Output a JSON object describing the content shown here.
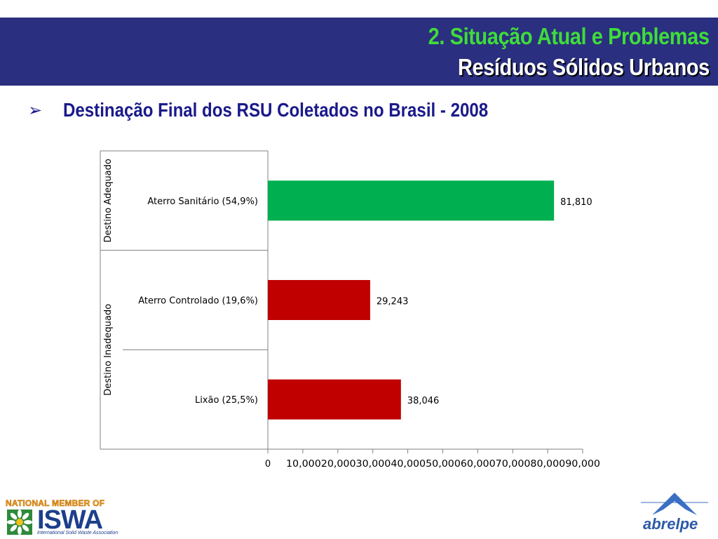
{
  "header": {
    "title_line1": "2. Situação Atual e Problemas",
    "title_line2": "Resíduos Sólidos Urbanos"
  },
  "subtitle": {
    "bullet": "➢",
    "text": "Destinação Final dos RSU Coletados no Brasil - 2008"
  },
  "chart_data": {
    "type": "bar",
    "orientation": "horizontal",
    "groups": [
      {
        "label": "Destino Adequado",
        "categories": [
          "Aterro Sanitário (54,9%)"
        ]
      },
      {
        "label": "Destino Inadequado",
        "categories": [
          "Aterro Controlado (19,6%)",
          "Lixão (25,5%)"
        ]
      }
    ],
    "categories": [
      "Aterro Sanitário (54,9%)",
      "Aterro Controlado (19,6%)",
      "Lixão (25,5%)"
    ],
    "values": [
      81810,
      29243,
      38046
    ],
    "value_labels": [
      "81,810",
      "29,243",
      "38,046"
    ],
    "colors": [
      "#00b050",
      "#c00000",
      "#c00000"
    ],
    "xlim": [
      0,
      90000
    ],
    "x_ticks": [
      0,
      10000,
      20000,
      30000,
      40000,
      50000,
      60000,
      70000,
      80000,
      90000
    ],
    "x_tick_labels": [
      "0",
      "10,000",
      "20,000",
      "30,000",
      "40,000",
      "50,000",
      "60,000",
      "70,000",
      "80,000",
      "90,000"
    ],
    "grid": false,
    "legend": "none"
  },
  "logos": {
    "isva_top": "NATIONAL MEMBER OF",
    "isva_word": "ISWA",
    "isva_sub": "International Solid Waste Association",
    "abrelpe_word": "abrelpe"
  }
}
